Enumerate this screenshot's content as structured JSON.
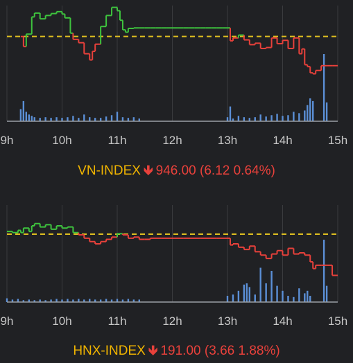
{
  "colors": {
    "background": "#202124",
    "up": "#3ec43e",
    "down": "#e8413b",
    "reference": "#e0c020",
    "volume": "#5b8fd6",
    "grid": "#3a3b3e",
    "axis": "#9aa0a6",
    "ticks": "#c8c8c8",
    "index_name": "#f0b400"
  },
  "chart_data": [
    {
      "type": "line",
      "title": "VN-INDEX",
      "summary": {
        "name": "VN-INDEX",
        "arrow": "down-arrow-icon",
        "value": "946.00",
        "change": "(6.12 0.64%)"
      },
      "x_ticks": [
        "9h",
        "10h",
        "11h",
        "12h",
        "13h",
        "14h",
        "15h"
      ],
      "x_range_hours": [
        9,
        15
      ],
      "reference": 952.12,
      "ylim": [
        938,
        958
      ],
      "grid": "vertical",
      "price": {
        "x": [
          9.25,
          9.3,
          9.35,
          9.45,
          9.5,
          9.6,
          9.7,
          9.8,
          9.9,
          10.0,
          10.05,
          10.15,
          10.2,
          10.3,
          10.4,
          10.5,
          10.55,
          10.6,
          10.7,
          10.8,
          10.9,
          11.0,
          11.05,
          11.1,
          11.15,
          11.2,
          11.3,
          11.4,
          11.5,
          11.6,
          11.7,
          11.8,
          11.9,
          12.0,
          12.1,
          12.2,
          12.3,
          12.4,
          12.5,
          12.6,
          12.7,
          12.8,
          12.9,
          13.0,
          13.05,
          13.1,
          13.2,
          13.3,
          13.4,
          13.5,
          13.6,
          13.7,
          13.8,
          13.9,
          14.0,
          14.1,
          14.2,
          14.3,
          14.35,
          14.4,
          14.45,
          14.5,
          14.55,
          14.6,
          14.7,
          14.8,
          14.9,
          15.0
        ],
        "y": [
          952.1,
          950.0,
          952.6,
          956.2,
          957.0,
          955.8,
          956.5,
          956.9,
          957.3,
          956.8,
          956.0,
          952.8,
          951.5,
          950.8,
          948.5,
          947.2,
          949.0,
          950.5,
          954.2,
          956.5,
          958.2,
          957.5,
          955.5,
          953.5,
          953.0,
          953.8,
          953.9,
          953.9,
          953.9,
          953.9,
          953.9,
          953.9,
          953.9,
          953.9,
          953.9,
          953.9,
          953.9,
          953.9,
          953.9,
          953.9,
          953.9,
          953.9,
          953.9,
          953.9,
          951.2,
          951.8,
          952.4,
          951.4,
          950.4,
          950.7,
          949.6,
          949.8,
          951.8,
          950.6,
          951.3,
          949.6,
          951.8,
          948.5,
          949.5,
          946.2,
          945.8,
          944.5,
          944.3,
          945.0,
          946.0,
          946.0,
          946.0,
          946.0
        ]
      },
      "volume": {
        "x": [
          9.25,
          9.3,
          9.35,
          9.4,
          9.45,
          9.5,
          9.6,
          9.7,
          9.8,
          9.9,
          10.0,
          10.1,
          10.2,
          10.3,
          10.4,
          10.5,
          10.6,
          10.7,
          10.8,
          10.9,
          11.0,
          11.1,
          11.2,
          11.3,
          11.4,
          13.0,
          13.05,
          13.1,
          13.2,
          13.3,
          13.4,
          13.5,
          13.6,
          13.7,
          13.8,
          13.9,
          14.0,
          14.1,
          14.2,
          14.3,
          14.4,
          14.45,
          14.5,
          14.55,
          14.75,
          14.8
        ],
        "v": [
          18,
          30,
          14,
          10,
          8,
          6,
          5,
          6,
          5,
          6,
          5,
          6,
          8,
          5,
          10,
          6,
          5,
          5,
          7,
          9,
          14,
          6,
          5,
          6,
          4,
          6,
          22,
          4,
          8,
          6,
          5,
          6,
          10,
          7,
          9,
          11,
          8,
          9,
          14,
          12,
          16,
          24,
          34,
          30,
          100,
          28
        ]
      }
    },
    {
      "type": "line",
      "title": "HNX-INDEX",
      "summary": {
        "name": "HNX-INDEX",
        "arrow": "down-arrow-icon",
        "value": "191.00",
        "change": "(3.66 1.88%)"
      },
      "x_ticks": [
        "9h",
        "10h",
        "11h",
        "12h",
        "13h",
        "14h",
        "15h"
      ],
      "x_range_hours": [
        9,
        15
      ],
      "reference": 194.66,
      "ylim": [
        189,
        197
      ],
      "grid": "vertical",
      "price": {
        "x": [
          9.0,
          9.1,
          9.2,
          9.25,
          9.3,
          9.4,
          9.45,
          9.5,
          9.6,
          9.7,
          9.8,
          9.9,
          10.0,
          10.1,
          10.2,
          10.3,
          10.4,
          10.5,
          10.6,
          10.7,
          10.8,
          10.9,
          11.0,
          11.1,
          11.2,
          11.3,
          11.4,
          11.5,
          11.6,
          11.8,
          12.0,
          12.2,
          12.5,
          12.8,
          13.0,
          13.05,
          13.1,
          13.2,
          13.3,
          13.4,
          13.5,
          13.6,
          13.7,
          13.8,
          13.9,
          14.0,
          14.1,
          14.2,
          14.3,
          14.4,
          14.5,
          14.55,
          14.6,
          14.7,
          14.8,
          14.9,
          15.0
        ],
        "y": [
          194.9,
          194.8,
          195.0,
          194.8,
          195.2,
          194.9,
          195.4,
          195.6,
          195.3,
          195.5,
          195.1,
          195.4,
          195.2,
          195.3,
          194.8,
          194.6,
          194.3,
          194.0,
          193.8,
          194.0,
          194.2,
          194.4,
          194.7,
          194.6,
          194.3,
          194.4,
          194.2,
          194.2,
          194.3,
          194.3,
          194.3,
          194.3,
          194.3,
          194.3,
          194.3,
          193.7,
          193.8,
          193.5,
          193.3,
          193.6,
          193.1,
          192.8,
          192.5,
          192.9,
          193.2,
          192.8,
          193.4,
          192.9,
          193.0,
          192.8,
          192.2,
          191.6,
          191.9,
          191.9,
          191.9,
          191.0,
          191.0
        ]
      },
      "volume": {
        "x": [
          9.0,
          9.1,
          9.2,
          9.3,
          9.4,
          9.5,
          9.6,
          9.7,
          9.8,
          9.9,
          10.0,
          10.1,
          10.2,
          10.3,
          10.4,
          10.5,
          10.6,
          10.7,
          10.8,
          10.9,
          11.0,
          11.1,
          11.2,
          11.3,
          11.4,
          13.0,
          13.1,
          13.2,
          13.3,
          13.35,
          13.4,
          13.5,
          13.6,
          13.7,
          13.8,
          13.9,
          14.0,
          14.1,
          14.2,
          14.3,
          14.4,
          14.45,
          14.5,
          14.75,
          14.8
        ],
        "v": [
          6,
          4,
          5,
          3,
          4,
          3,
          4,
          3,
          4,
          5,
          4,
          5,
          4,
          5,
          4,
          5,
          4,
          4,
          5,
          4,
          5,
          4,
          5,
          4,
          4,
          10,
          12,
          18,
          28,
          30,
          24,
          12,
          55,
          30,
          50,
          26,
          18,
          10,
          8,
          22,
          14,
          18,
          10,
          100,
          26
        ]
      }
    }
  ]
}
